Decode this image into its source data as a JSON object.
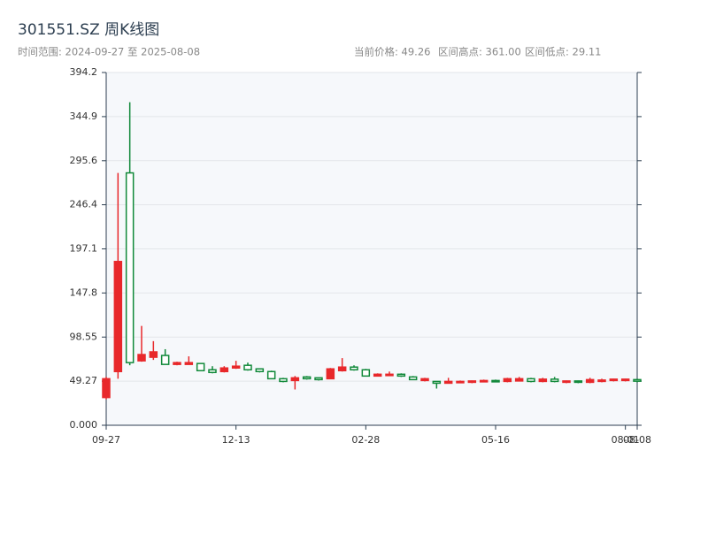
{
  "chart_data": {
    "type": "candlestick",
    "title": "301551.SZ 周K线图",
    "subtitle": "时间范围: 2024-09-27 至 2025-08-08",
    "stats": [
      "当前价格: 49.26",
      "区间高点: 361.00",
      "区间低点: 29.11"
    ],
    "categories": [
      "09-27",
      null,
      null,
      null,
      null,
      null,
      null,
      null,
      null,
      null,
      null,
      "12-13",
      null,
      null,
      null,
      null,
      null,
      null,
      null,
      null,
      null,
      null,
      "02-28",
      null,
      null,
      null,
      null,
      null,
      null,
      null,
      null,
      null,
      null,
      "05-16",
      null,
      null,
      null,
      null,
      null,
      null,
      null,
      null,
      null,
      null,
      "08-01",
      "08-08"
    ],
    "open": [
      31,
      60,
      282,
      72,
      76,
      78,
      68,
      68,
      69,
      62,
      60,
      64,
      67,
      63,
      60,
      52,
      50,
      54,
      53,
      52,
      61,
      65,
      62,
      55,
      56,
      57,
      54,
      50,
      49,
      47,
      48,
      48,
      48.5,
      50,
      49,
      49.5,
      52,
      49,
      51.5,
      48,
      49.5,
      48,
      49,
      50,
      50,
      51
    ],
    "high": [
      54,
      282,
      361,
      111,
      94,
      85,
      71,
      77,
      69,
      66,
      66,
      72,
      70,
      63,
      61,
      53,
      55,
      55,
      53,
      64,
      75,
      67,
      63,
      58,
      60,
      58,
      55,
      53,
      49,
      53,
      50,
      50,
      51,
      51,
      53,
      54,
      53,
      53,
      54,
      50,
      50,
      53,
      52,
      52,
      52,
      52
    ],
    "low": [
      29.11,
      52,
      67,
      71,
      73,
      68,
      67,
      68,
      61,
      58,
      59,
      63,
      61,
      59,
      52,
      48,
      40,
      51,
      50,
      52,
      60,
      61,
      55,
      55,
      55,
      54,
      51,
      49,
      41,
      47,
      47,
      47,
      48,
      48,
      48,
      49,
      48,
      48,
      48,
      47,
      47,
      47,
      48,
      49,
      49,
      48
    ],
    "close": [
      52,
      183,
      70,
      79,
      82,
      68,
      70,
      70,
      61,
      59,
      64,
      66,
      62,
      60,
      52,
      49,
      53,
      52,
      51,
      63,
      65,
      62,
      55,
      57,
      57,
      55,
      51,
      52,
      47,
      49,
      49,
      49.5,
      50,
      48.5,
      52,
      52,
      49,
      51.5,
      49,
      49.5,
      48,
      51,
      50.5,
      51.5,
      51.5,
      49.26
    ],
    "up_color": "#e8282b",
    "down_color": "#11893a",
    "ylim": [
      0,
      394.2
    ],
    "yticks": [
      {
        "value": 0,
        "label": "0.000"
      },
      49.27,
      98.55,
      147.8,
      197.1,
      246.4,
      295.6,
      344.9,
      394.2
    ],
    "grid": true
  }
}
